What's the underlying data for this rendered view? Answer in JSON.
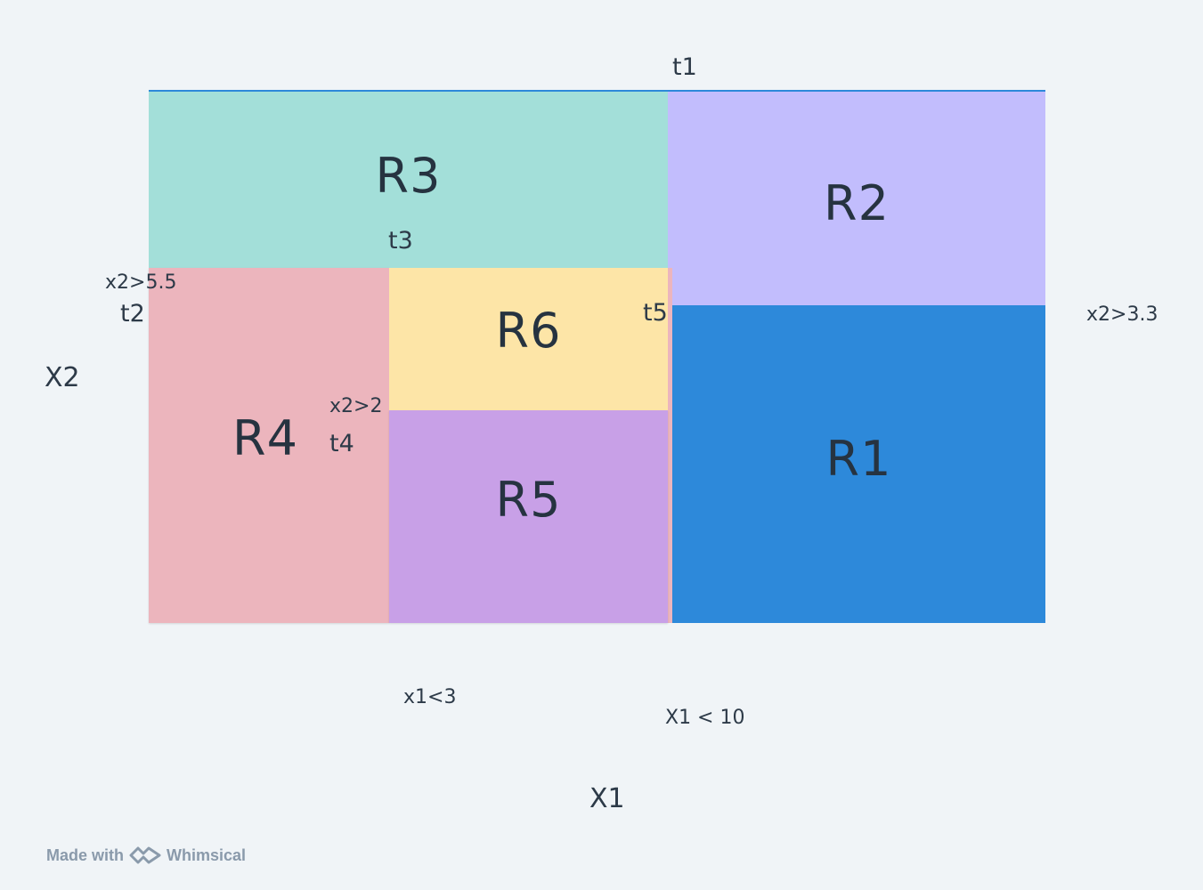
{
  "regions": {
    "r1": "R1",
    "r2": "R2",
    "r3": "R3",
    "r4": "R4",
    "r5": "R5",
    "r6": "R6"
  },
  "thresholds": {
    "t1": "t1",
    "t2": "t2",
    "t3": "t3",
    "t4": "t4",
    "t5": "t5"
  },
  "conditions": {
    "x2_gt_5_5": "x2>5.5",
    "x2_gt_3_3": "x2>3.3",
    "x2_gt_2": "x2>2",
    "x1_lt_3": "x1<3",
    "x1_lt_10": "X1 < 10"
  },
  "axes": {
    "x": "X1",
    "y": "X2"
  },
  "watermark": {
    "made_with": "Made with",
    "brand": "Whimsical"
  },
  "colors": {
    "r1": "#2d89da",
    "r2": "#c2bdfd",
    "r3": "#a3dfd9",
    "r4": "#ecb5bd",
    "r5": "#c8a0e7",
    "r6": "#fde5a7",
    "background": "#f0f4f7"
  }
}
